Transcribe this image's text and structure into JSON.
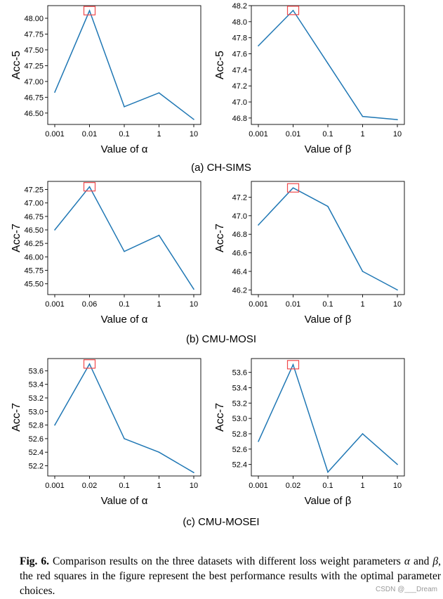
{
  "rows": [
    {
      "subcaption": "(a) CH-SIMS"
    },
    {
      "subcaption": "(b) CMU-MOSI"
    },
    {
      "subcaption": "(c) CMU-MOSEI"
    }
  ],
  "chart_data": [
    {
      "type": "line",
      "ylabel": "Acc-5",
      "xlabel": "Value of  α",
      "categories": [
        "0.001",
        "0.01",
        "0.1",
        "1",
        "10"
      ],
      "values": [
        46.83,
        48.12,
        46.6,
        46.82,
        46.4
      ],
      "ylim": [
        46.32,
        48.2
      ],
      "yticks": [
        "46.50",
        "46.75",
        "47.00",
        "47.25",
        "47.50",
        "47.75",
        "48.00"
      ],
      "ytick_values": [
        46.5,
        46.75,
        47.0,
        47.25,
        47.5,
        47.75,
        48.0
      ],
      "highlight_index": 1,
      "line_color": "#1f77b4",
      "highlight_color": "#f0494b"
    },
    {
      "type": "line",
      "ylabel": "Acc-5",
      "xlabel": "Value of  β",
      "categories": [
        "0.001",
        "0.01",
        "0.1",
        "1",
        "10"
      ],
      "values": [
        47.7,
        48.14,
        47.48,
        46.82,
        46.78
      ],
      "ylim": [
        46.72,
        48.2
      ],
      "yticks": [
        "46.8",
        "47.0",
        "47.2",
        "47.4",
        "47.6",
        "47.8",
        "48.0",
        "48.2"
      ],
      "ytick_values": [
        46.8,
        47.0,
        47.2,
        47.4,
        47.6,
        47.8,
        48.0,
        48.2
      ],
      "highlight_index": 1,
      "line_color": "#1f77b4",
      "highlight_color": "#f0494b"
    },
    {
      "type": "line",
      "ylabel": "Acc-7",
      "xlabel": "Value of  α",
      "categories": [
        "0.001",
        "0.06",
        "0.1",
        "1",
        "10"
      ],
      "values": [
        46.5,
        47.3,
        46.1,
        46.4,
        45.4
      ],
      "ylim": [
        45.3,
        47.4
      ],
      "yticks": [
        "45.50",
        "45.75",
        "46.00",
        "46.25",
        "46.50",
        "46.75",
        "47.00",
        "47.25"
      ],
      "ytick_values": [
        45.5,
        45.75,
        46.0,
        46.25,
        46.5,
        46.75,
        47.0,
        47.25
      ],
      "highlight_index": 1,
      "line_color": "#1f77b4",
      "highlight_color": "#f0494b"
    },
    {
      "type": "line",
      "ylabel": "Acc-7",
      "xlabel": "Value of  β",
      "categories": [
        "0.001",
        "0.01",
        "0.1",
        "1",
        "10"
      ],
      "values": [
        46.9,
        47.3,
        47.1,
        46.4,
        46.2
      ],
      "ylim": [
        46.15,
        47.37
      ],
      "yticks": [
        "46.2",
        "46.4",
        "46.6",
        "46.8",
        "47.0",
        "47.2"
      ],
      "ytick_values": [
        46.2,
        46.4,
        46.6,
        46.8,
        47.0,
        47.2
      ],
      "highlight_index": 1,
      "line_color": "#1f77b4",
      "highlight_color": "#f0494b"
    },
    {
      "type": "line",
      "ylabel": "Acc-7",
      "xlabel": "Value of  α",
      "categories": [
        "0.001",
        "0.02",
        "0.1",
        "1",
        "10"
      ],
      "values": [
        52.8,
        53.7,
        52.6,
        52.4,
        52.1
      ],
      "ylim": [
        52.05,
        53.78
      ],
      "yticks": [
        "52.2",
        "52.4",
        "52.6",
        "52.8",
        "53.0",
        "53.2",
        "53.4",
        "53.6"
      ],
      "ytick_values": [
        52.2,
        52.4,
        52.6,
        52.8,
        53.0,
        53.2,
        53.4,
        53.6
      ],
      "highlight_index": 1,
      "line_color": "#1f77b4",
      "highlight_color": "#f0494b"
    },
    {
      "type": "line",
      "ylabel": "Acc-7",
      "xlabel": "Value of  β",
      "categories": [
        "0.001",
        "0.02",
        "0.1",
        "1",
        "10"
      ],
      "values": [
        52.7,
        53.7,
        52.3,
        52.8,
        52.4
      ],
      "ylim": [
        52.25,
        53.78
      ],
      "yticks": [
        "52.4",
        "52.6",
        "52.8",
        "53.0",
        "53.2",
        "53.4",
        "53.6"
      ],
      "ytick_values": [
        52.4,
        52.6,
        52.8,
        53.0,
        53.2,
        53.4,
        53.6
      ],
      "highlight_index": 1,
      "line_color": "#1f77b4",
      "highlight_color": "#f0494b"
    }
  ],
  "caption": {
    "label": "Fig. 6.",
    "text_1": " Comparison results on the three datasets with different loss weight parameters ",
    "alpha": "α",
    "text_2": " and ",
    "beta": "β",
    "text_3": ", the red squares in the figure represent the best performance results with the optimal parameter choices."
  },
  "watermark": "CSDN @___Dream"
}
